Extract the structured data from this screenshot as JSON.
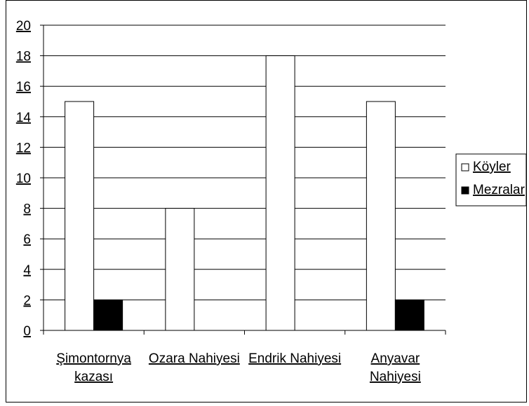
{
  "chart_data": {
    "type": "bar",
    "categories": [
      [
        "Şimontornya",
        "kazası"
      ],
      [
        "Ozara Nahiyesi"
      ],
      [
        "Endrik Nahiyesi"
      ],
      [
        "Anyavar",
        "Nahiyesi"
      ]
    ],
    "series": [
      {
        "name": "Köyler",
        "values": [
          15,
          8,
          18,
          15
        ],
        "color": "#ffffff"
      },
      {
        "name": "Mezralar",
        "values": [
          2,
          0,
          0,
          2
        ],
        "color": "#000000"
      }
    ],
    "ylim": [
      0,
      20
    ],
    "yticks": [
      "0",
      "2",
      "4",
      "6",
      "8",
      "10",
      "12",
      "14",
      "16",
      "18",
      "20"
    ],
    "grid": true,
    "legend_position": "right"
  }
}
